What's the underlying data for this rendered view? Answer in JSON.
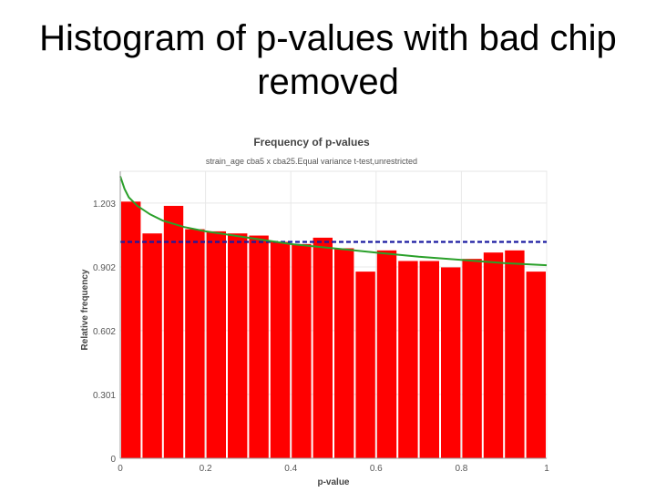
{
  "slide": {
    "title_line1": "Histogram of p-values with bad chip",
    "title_line2": "removed"
  },
  "chart_data": {
    "type": "bar",
    "title": "Frequency of p-values",
    "subtitle": "strain_age cba5 x cba25.Equal variance t-test,unrestricted",
    "xlabel": "p-value",
    "ylabel": "Relative frequency",
    "xlim": [
      0,
      1
    ],
    "ylim": [
      0,
      1.353
    ],
    "x_ticks": [
      "0",
      "0.2",
      "0.4",
      "0.6",
      "0.8",
      "1"
    ],
    "y_ticks": [
      "0",
      "0.301",
      "0.602",
      "0.902",
      "1.203"
    ],
    "bin_width": 0.05,
    "bin_starts": [
      0,
      0.05,
      0.1,
      0.15,
      0.2,
      0.25,
      0.3,
      0.35,
      0.4,
      0.45,
      0.5,
      0.55,
      0.6,
      0.65,
      0.7,
      0.75,
      0.8,
      0.85,
      0.9,
      0.95
    ],
    "values": [
      1.21,
      1.06,
      1.19,
      1.08,
      1.07,
      1.06,
      1.05,
      1.02,
      1.01,
      1.04,
      0.99,
      0.88,
      0.98,
      0.93,
      0.93,
      0.9,
      0.94,
      0.97,
      0.98,
      0.88
    ],
    "reference_line": {
      "y": 1.02,
      "style": "dashed",
      "color": "#1a1aa0"
    },
    "fit_curve": {
      "color": "#2aa02a",
      "x": [
        0,
        0.01,
        0.02,
        0.04,
        0.07,
        0.1,
        0.15,
        0.2,
        0.3,
        0.4,
        0.5,
        0.6,
        0.7,
        0.8,
        0.9,
        1.0
      ],
      "y": [
        1.33,
        1.27,
        1.23,
        1.19,
        1.15,
        1.12,
        1.09,
        1.07,
        1.04,
        1.01,
        0.99,
        0.97,
        0.95,
        0.935,
        0.92,
        0.91
      ]
    },
    "bar_color": "#ff0000",
    "grid": true
  }
}
